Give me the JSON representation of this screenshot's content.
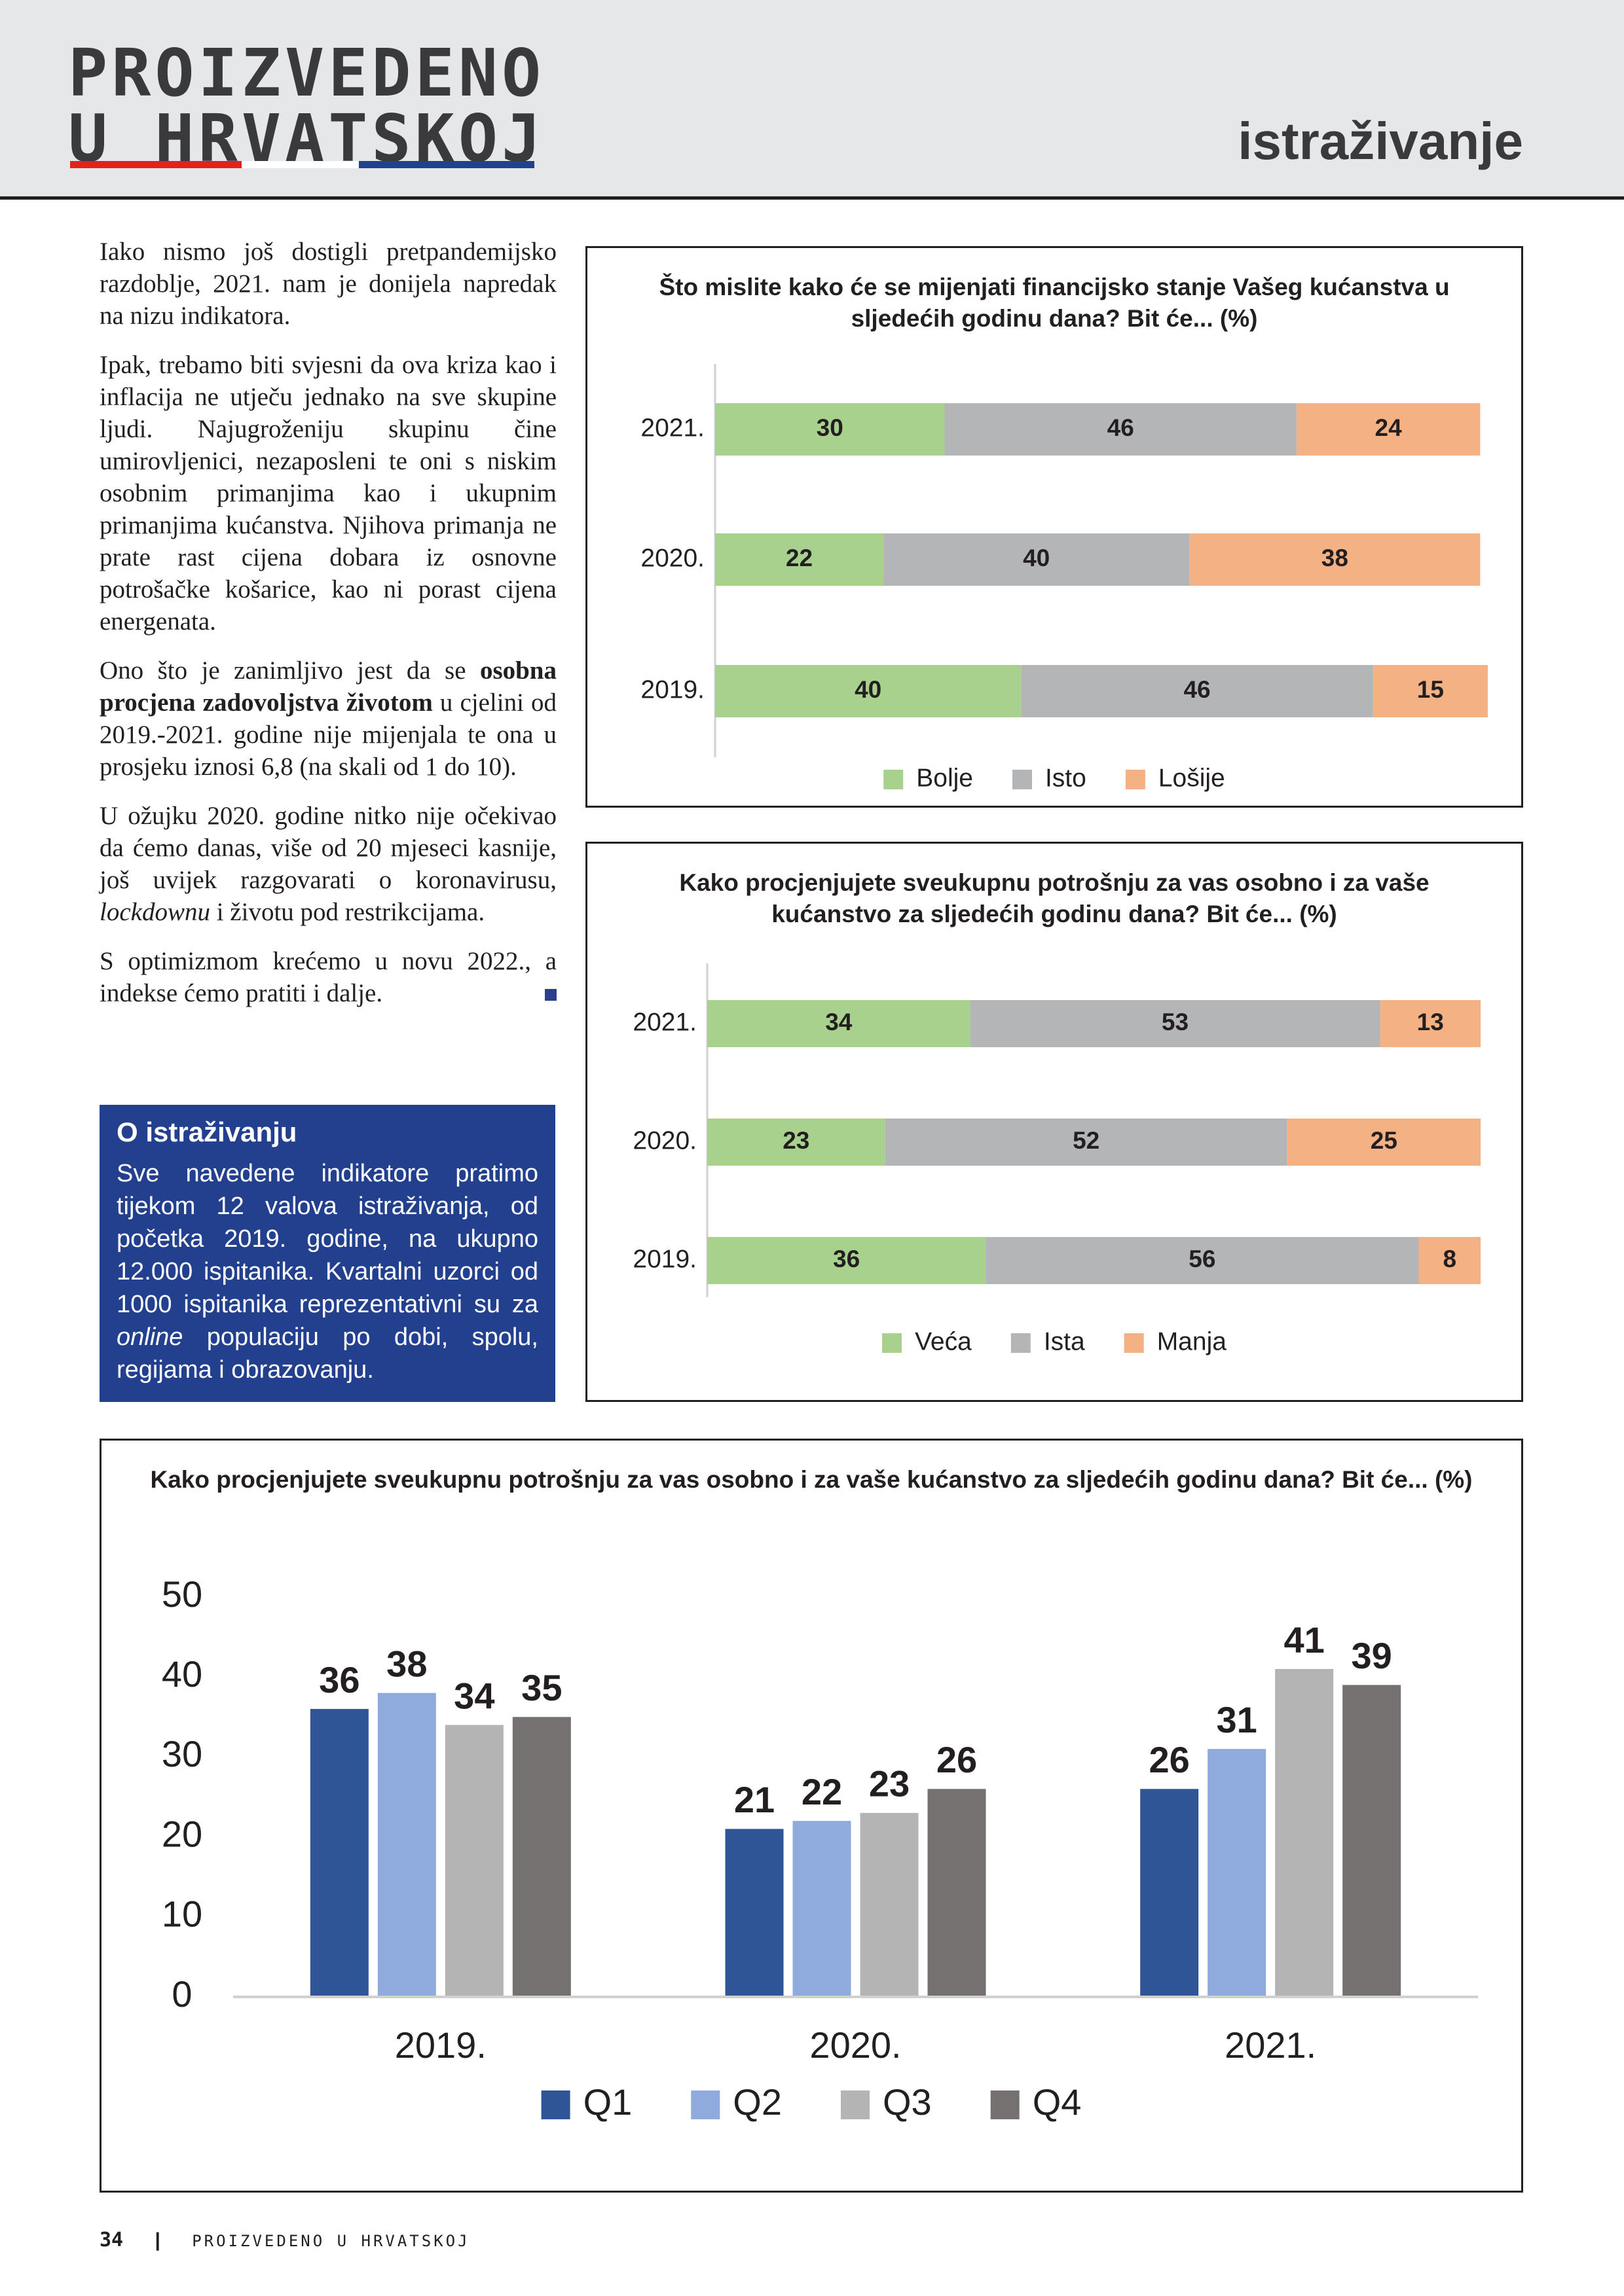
{
  "header": {
    "logo_line1": "PROIZVEDENO",
    "logo_line2": "U HRVATSKOJ",
    "section": "istraživanje"
  },
  "article": {
    "paragraphs": [
      [
        "Iako nismo još dostigli pretpandemijsko razdoblje, 2021. nam je donijela napredak na nizu indikatora."
      ],
      [
        "Ipak, trebamo biti svjesni da ova kriza kao i inflacija ne utječu jednako na sve skupine ljudi. Najugroženiju skupinu čine umirovljenici, nezaposleni te oni s niskim osobnim primanjima kao i ukupnim primanjima kućanstva. Njihova primanja ne prate rast cijena dobara iz osnovne potrošačke košarice, kao ni porast cijena energenata."
      ],
      [
        "Ono što je zanimljivo jest da se ",
        "osobna procjena zadovoljstva životom",
        " u cjelini od 2019.-2021. godine nije mijenjala te ona u prosjeku iznosi 6,8 (na skali od 1 do 10)."
      ],
      [
        "U ožujku 2020. godine nitko nije očekivao da ćemo danas, više od 20 mjeseci kasnije, još uvijek razgovarati o koronavirusu, ",
        "lockdownu",
        " i životu pod restrikcijama."
      ],
      [
        "S optimizmom krećemo u novu 2022., a indekse ćemo pratiti i dalje."
      ]
    ]
  },
  "info_box": {
    "title": "O istraživanju",
    "body": [
      "Sve navedene indikatore pratimo tijekom 12 valova istraživanja, od početka 2019. godine, na ukupno 12.000 ispitanika. Kvartalni uzorci od 1000 ispitanika reprezentativni su za ",
      "online",
      " populaciju po dobi, spolu, regijama i obrazovanju."
    ]
  },
  "footer": {
    "page": "34",
    "publication": "PROIZVEDENO U HRVATSKOJ"
  },
  "chart_data": [
    {
      "type": "bar",
      "orientation": "horizontal",
      "stacked": true,
      "title": "Što mislite kako će se mijenjati financijsko stanje Vašeg kućanstva u sljedećih godinu dana?  Bit će... (%)",
      "categories": [
        "2021.",
        "2020.",
        "2019."
      ],
      "series": [
        {
          "name": "Bolje",
          "color": "#a9d18e",
          "values": [
            30,
            22,
            40
          ]
        },
        {
          "name": "Isto",
          "color": "#b3b5b7",
          "values": [
            46,
            40,
            46
          ]
        },
        {
          "name": "Lošije",
          "color": "#f4b183",
          "values": [
            24,
            38,
            15
          ]
        }
      ],
      "legend": "bottom"
    },
    {
      "type": "bar",
      "orientation": "horizontal",
      "stacked": true,
      "title": "Kako procjenjujete sveukupnu potrošnju za vas osobno i za vaše kućanstvo za sljedećih godinu dana? Bit će... (%)",
      "categories": [
        "2021.",
        "2020.",
        "2019."
      ],
      "series": [
        {
          "name": "Veća",
          "color": "#a9d18e",
          "values": [
            34,
            23,
            36
          ]
        },
        {
          "name": "Ista",
          "color": "#b3b5b7",
          "values": [
            53,
            52,
            56
          ]
        },
        {
          "name": "Manja",
          "color": "#f4b183",
          "values": [
            13,
            25,
            8
          ]
        }
      ],
      "legend": "bottom"
    },
    {
      "type": "bar",
      "orientation": "vertical",
      "title": "Kako procjenjujete sveukupnu potrošnju za vas osobno i za vaše kućanstvo za sljedećih godinu dana? Bit će... (%)",
      "categories": [
        "2019.",
        "2020.",
        "2021."
      ],
      "series": [
        {
          "name": "Q1",
          "color": "#2f5597",
          "values": [
            36,
            21,
            26
          ]
        },
        {
          "name": "Q2",
          "color": "#8faadc",
          "values": [
            38,
            22,
            31
          ]
        },
        {
          "name": "Q3",
          "color": "#b4b4b4",
          "values": [
            34,
            23,
            41
          ]
        },
        {
          "name": "Q4",
          "color": "#767171",
          "values": [
            35,
            26,
            39
          ]
        }
      ],
      "ylim": [
        0,
        50
      ],
      "yticks": [
        0,
        10,
        20,
        30,
        40,
        50
      ],
      "grid": false,
      "legend": "bottom"
    }
  ]
}
